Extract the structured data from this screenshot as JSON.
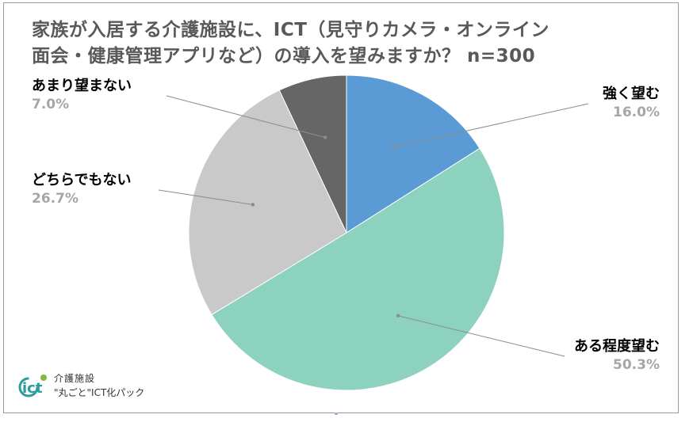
{
  "chart_data": {
    "type": "pie",
    "title_lines": [
      "家族が入居する介護施設に、ICT（見守りカメラ・オンライン",
      "面会・健康管理アプリなど）の導入を望みますか？ n=300"
    ],
    "slices": [
      {
        "label": "強く望む",
        "value": 16.0,
        "value_label": "16.0%",
        "color": "#5b9bd5"
      },
      {
        "label": "ある程度望む",
        "value": 50.3,
        "value_label": "50.3%",
        "color": "#8dd1bf"
      },
      {
        "label": "どちらでもない",
        "value": 26.7,
        "value_label": "26.7%",
        "color": "#c9c9c9"
      },
      {
        "label": "あまり望まない",
        "value": 7.0,
        "value_label": "7.0%",
        "color": "#666666"
      }
    ],
    "start_angle_deg": 0,
    "direction": "clockwise",
    "label_color": "#000000",
    "value_color": "#a6a6a6",
    "leader_color": "#8c8c8c"
  },
  "brand": {
    "mark_text": "ict",
    "line1": "介護施設",
    "line2": "\"丸ごと\"ICT化パック",
    "teal": "#2a9d9c",
    "green": "#7dbb42"
  }
}
